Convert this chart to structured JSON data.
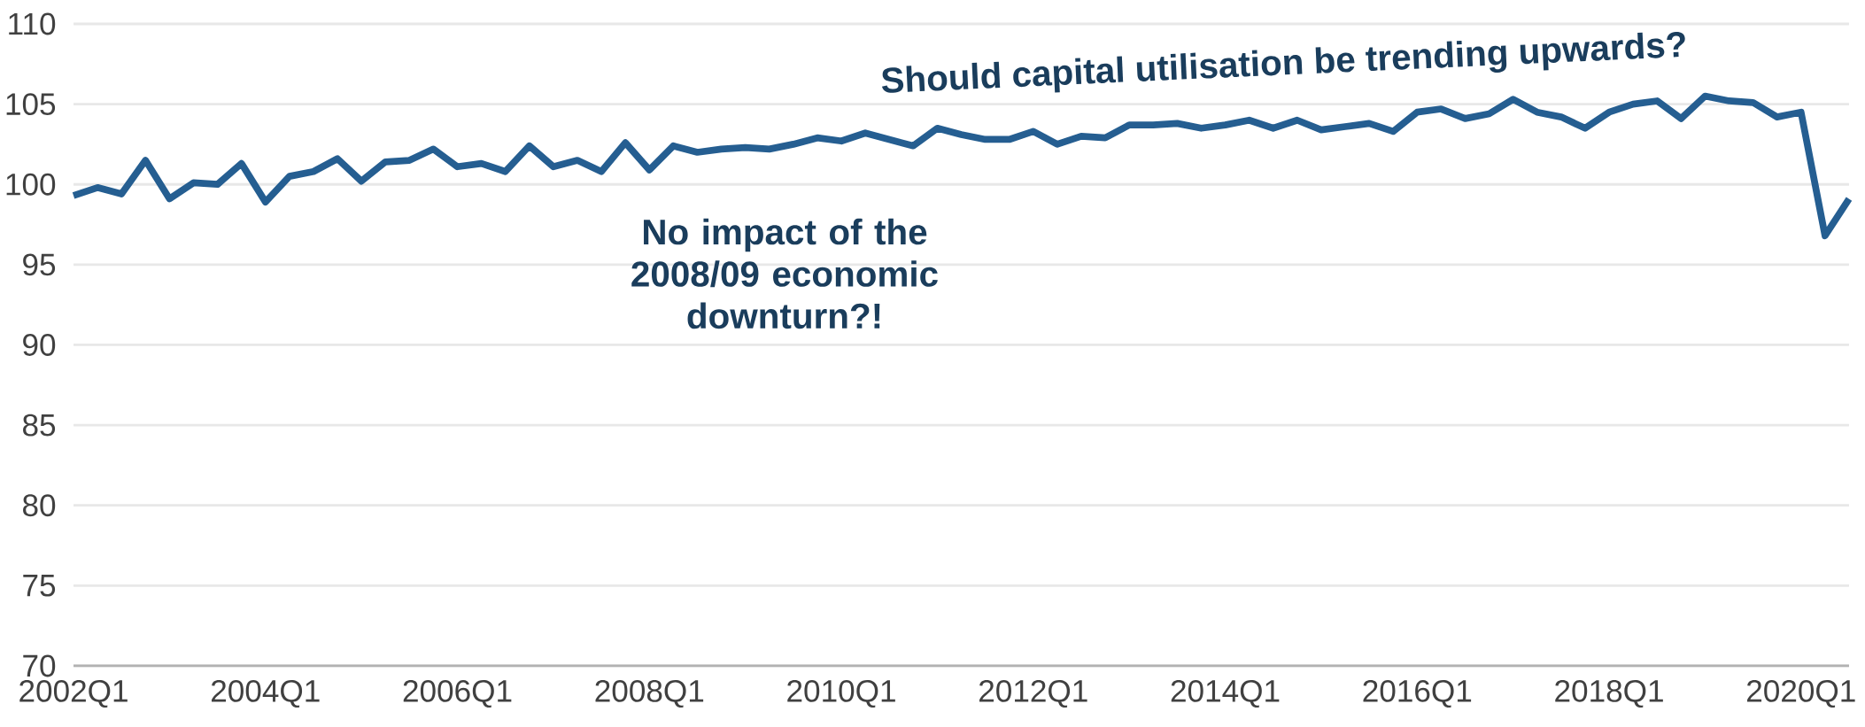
{
  "chart_data": {
    "type": "line",
    "categories": [
      "2002Q1",
      null,
      null,
      null,
      null,
      null,
      null,
      null,
      "2004Q1",
      null,
      null,
      null,
      null,
      null,
      null,
      null,
      "2006Q1",
      null,
      null,
      null,
      null,
      null,
      null,
      null,
      "2008Q1",
      null,
      null,
      null,
      null,
      null,
      null,
      null,
      "2010Q1",
      null,
      null,
      null,
      null,
      null,
      null,
      null,
      "2012Q1",
      null,
      null,
      null,
      null,
      null,
      null,
      null,
      "2014Q1",
      null,
      null,
      null,
      null,
      null,
      null,
      null,
      "2016Q1",
      null,
      null,
      null,
      null,
      null,
      null,
      null,
      "2018Q1",
      null,
      null,
      null,
      null,
      null,
      null,
      null,
      "2020Q1",
      null,
      null
    ],
    "series": [
      {
        "color": "#255e91",
        "values": [
          99.3,
          99.8,
          99.4,
          101.5,
          99.1,
          100.1,
          100.0,
          101.3,
          98.9,
          100.5,
          100.8,
          101.6,
          100.2,
          101.4,
          101.5,
          102.2,
          101.1,
          101.3,
          100.8,
          102.4,
          101.1,
          101.5,
          100.8,
          102.6,
          100.9,
          102.4,
          102.0,
          102.2,
          102.3,
          102.2,
          102.5,
          102.9,
          102.7,
          103.2,
          102.8,
          102.4,
          103.5,
          103.1,
          102.8,
          102.8,
          103.3,
          102.5,
          103.0,
          102.9,
          103.7,
          103.7,
          103.8,
          103.5,
          103.7,
          104.0,
          103.5,
          104.0,
          103.4,
          103.6,
          103.8,
          103.3,
          104.5,
          104.7,
          104.1,
          104.4,
          105.3,
          104.5,
          104.2,
          103.5,
          104.5,
          105.0,
          105.2,
          104.1,
          105.5,
          105.2,
          105.1,
          104.2,
          104.5,
          96.8,
          99.1
        ]
      }
    ],
    "ylim": [
      70,
      110
    ],
    "yticks": [
      70,
      75,
      80,
      85,
      90,
      95,
      100,
      105,
      110
    ],
    "grid": "y",
    "legend": false,
    "marker": "none",
    "line_style": "solid",
    "annotations": [
      "No impact of the 2008/09 economic downturn?!",
      "Should capital utilisation be trending upwards?"
    ]
  }
}
